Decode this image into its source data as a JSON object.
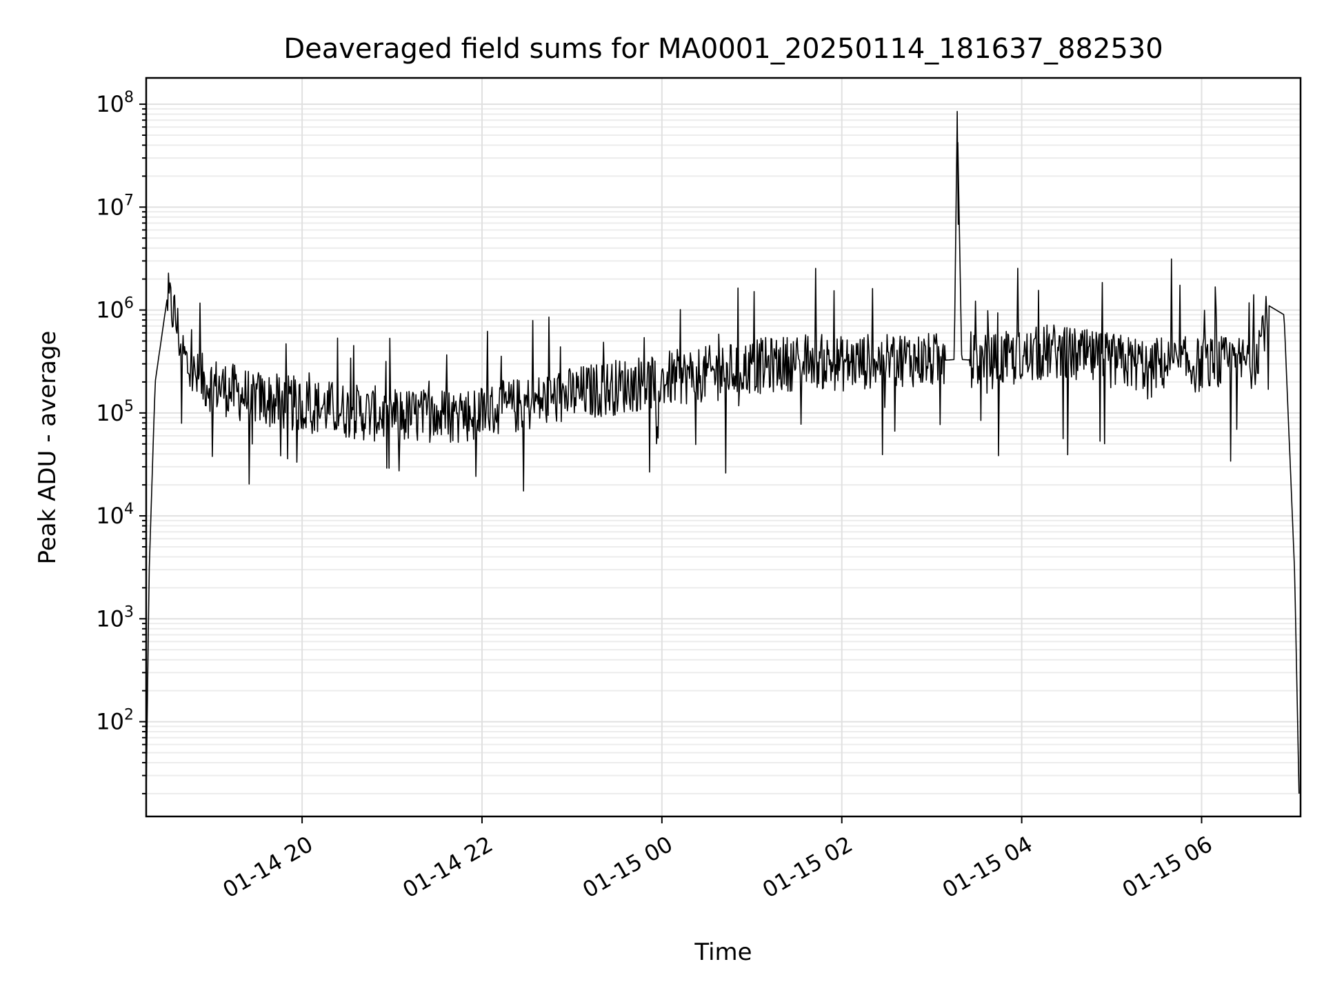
{
  "chart_data": {
    "type": "line",
    "title": "Deaveraged field sums for MA0001_20250114_181637_882530",
    "xlabel": "Time",
    "ylabel": "Peak ADU - average",
    "yscale": "log",
    "ylim": [
      12,
      180000000
    ],
    "xlim": [
      "2025-01-14 18:16",
      "2025-01-15 07:06"
    ],
    "x_ticks": [
      "2025-01-14 20:00",
      "2025-01-14 22:00",
      "2025-01-15 00:00",
      "2025-01-15 02:00",
      "2025-01-15 04:00",
      "2025-01-15 06:00"
    ],
    "x_tick_labels": [
      "01-14 20",
      "01-14 22",
      "01-15 00",
      "01-15 02",
      "01-15 04",
      "01-15 06"
    ],
    "y_ticks": [
      {
        "base": "10",
        "exp": "2",
        "value": 100
      },
      {
        "base": "10",
        "exp": "3",
        "value": 1000
      },
      {
        "base": "10",
        "exp": "4",
        "value": 10000
      },
      {
        "base": "10",
        "exp": "5",
        "value": 100000
      },
      {
        "base": "10",
        "exp": "6",
        "value": 1000000
      },
      {
        "base": "10",
        "exp": "7",
        "value": 10000000
      },
      {
        "base": "10",
        "exp": "8",
        "value": 100000000
      }
    ],
    "grid": true,
    "line_color": "#000000",
    "series": [
      {
        "x": [
          "2025-01-14 18:16",
          "2025-01-14 18:18",
          "2025-01-14 18:22",
          "2025-01-14 18:30",
          "2025-01-14 18:35",
          "2025-01-14 18:40",
          "2025-01-14 18:45",
          "2025-01-14 18:50",
          "2025-01-14 18:55",
          "2025-01-14 19:00",
          "2025-01-14 19:10",
          "2025-01-14 19:20",
          "2025-01-14 19:30",
          "2025-01-14 19:40",
          "2025-01-14 19:50",
          "2025-01-14 20:00",
          "2025-01-14 20:20",
          "2025-01-14 20:40",
          "2025-01-14 21:00",
          "2025-01-14 21:20",
          "2025-01-14 21:40",
          "2025-01-14 22:00",
          "2025-01-14 22:20",
          "2025-01-14 22:40",
          "2025-01-14 23:00",
          "2025-01-14 23:20",
          "2025-01-14 23:40",
          "2025-01-15 00:00",
          "2025-01-15 00:20",
          "2025-01-15 00:40",
          "2025-01-15 01:00",
          "2025-01-15 01:20",
          "2025-01-15 01:40",
          "2025-01-15 02:00",
          "2025-01-15 02:20",
          "2025-01-15 02:40",
          "2025-01-15 03:00",
          "2025-01-15 03:15",
          "2025-01-15 03:17",
          "2025-01-15 03:20",
          "2025-01-15 03:40",
          "2025-01-15 04:00",
          "2025-01-15 04:20",
          "2025-01-15 04:40",
          "2025-01-15 05:00",
          "2025-01-15 05:20",
          "2025-01-15 05:40",
          "2025-01-15 06:00",
          "2025-01-15 06:20",
          "2025-01-15 06:35",
          "2025-01-15 06:45",
          "2025-01-15 06:55",
          "2025-01-15 07:02",
          "2025-01-15 07:05"
        ],
        "y": [
          20,
          3000,
          200000,
          1300000,
          900000,
          400000,
          250000,
          210000,
          200000,
          190000,
          170000,
          150000,
          140000,
          130000,
          125000,
          120000,
          110000,
          100000,
          95000,
          92000,
          95000,
          100000,
          115000,
          130000,
          150000,
          170000,
          190000,
          210000,
          230000,
          250000,
          280000,
          300000,
          320000,
          300000,
          320000,
          340000,
          320000,
          330000,
          85000000,
          330000,
          320000,
          340000,
          400000,
          350000,
          320000,
          300000,
          300000,
          290000,
          300000,
          320000,
          1100000,
          900000,
          3000,
          20
        ]
      }
    ]
  }
}
